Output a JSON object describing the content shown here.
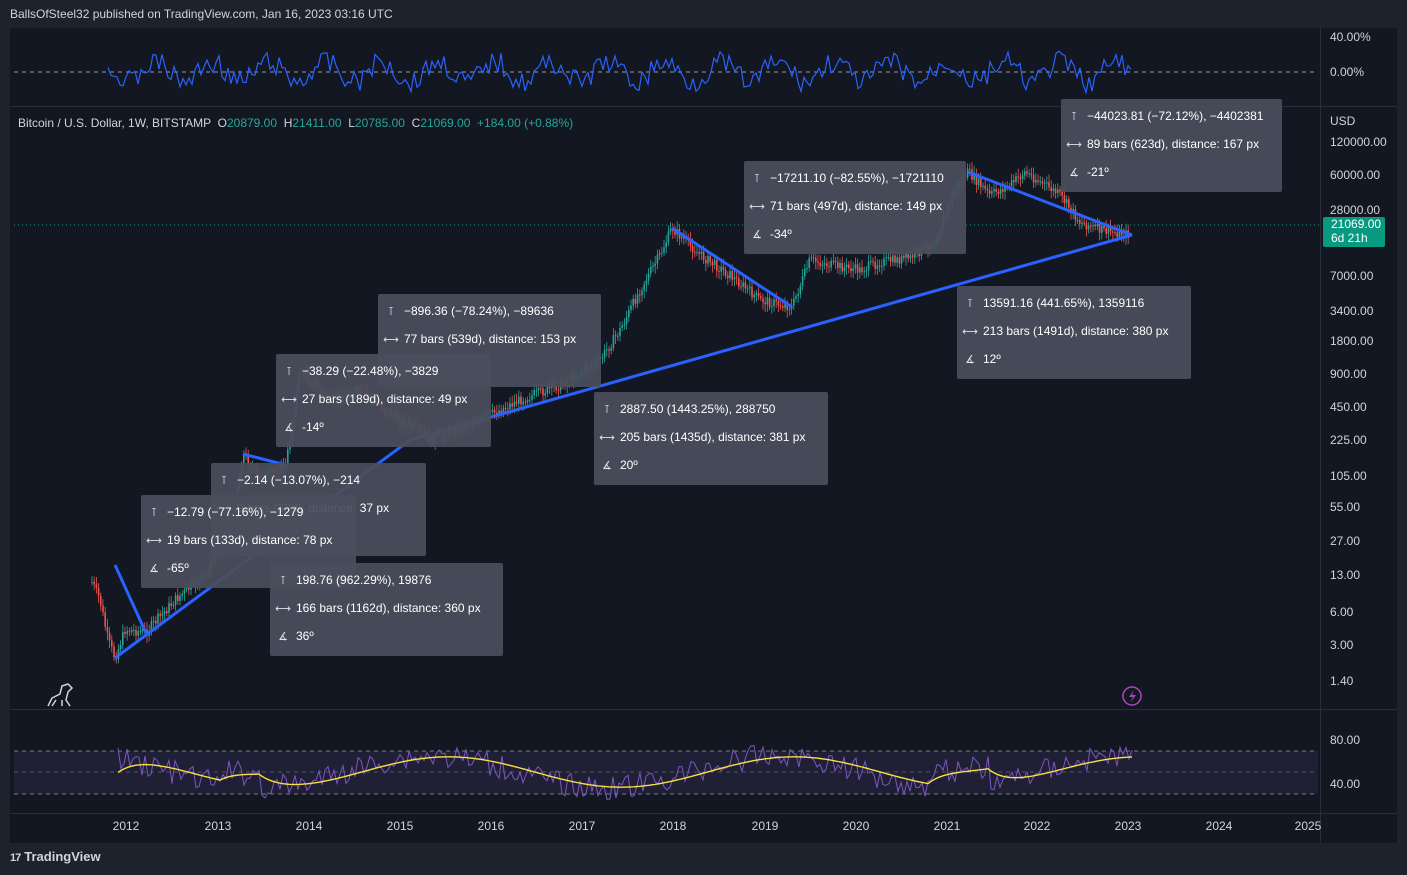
{
  "header": {
    "publish_text": "BallsOfSteel32 published on TradingView.com, Jan 16, 2023 03:16 UTC"
  },
  "legend": {
    "symbol": "Bitcoin / U.S. Dollar, 1W, BITSTAMP",
    "o_label": "O",
    "o_value": "20879.00",
    "h_label": "H",
    "h_value": "21411.00",
    "l_label": "L",
    "l_value": "20785.00",
    "c_label": "C",
    "c_value": "21069.00",
    "change": "+184.00 (+0.88%)"
  },
  "top_pane": {
    "ticks": [
      "40.00%",
      "0.00%"
    ]
  },
  "price_axis": {
    "currency": "USD",
    "ticks": [
      "120000.00",
      "60000.00",
      "28000.00",
      "7000.00",
      "3400.00",
      "1800.00",
      "900.00",
      "450.00",
      "225.00",
      "105.00",
      "55.00",
      "27.00",
      "13.00",
      "6.00",
      "3.00",
      "1.40"
    ]
  },
  "price_tag": {
    "price": "21069.00",
    "countdown": "6d 21h"
  },
  "rsi_pane": {
    "ticks": [
      "80.00",
      "40.00"
    ]
  },
  "time_axis": {
    "ticks": [
      "2012",
      "2013",
      "2014",
      "2015",
      "2016",
      "2017",
      "2018",
      "2019",
      "2020",
      "2021",
      "2022",
      "2023",
      "2024",
      "2025"
    ]
  },
  "measure_boxes": [
    {
      "price": "−12.79 (−77.16%), −1279",
      "bars": "19 bars (133d), distance: 78 px",
      "angle": "-65º"
    },
    {
      "price": "−2.14 (−13.07%), −214",
      "bars": "9 bars (63d), distance: 37 px",
      "angle": ""
    },
    {
      "price": "198.76 (962.29%), 19876",
      "bars": "166 bars (1162d), distance: 360 px",
      "angle": "36º"
    },
    {
      "price": "−38.29 (−22.48%), −3829",
      "bars": "27 bars (189d), distance: 49 px",
      "angle": "-14º"
    },
    {
      "price": "−896.36 (−78.24%), −89636",
      "bars": "77 bars (539d), distance: 153 px",
      "angle": ""
    },
    {
      "price": "2887.50 (1443.25%), 288750",
      "bars": "205 bars (1435d), distance: 381 px",
      "angle": "20º"
    },
    {
      "price": "−17211.10 (−82.55%), −1721110",
      "bars": "71 bars (497d), distance: 149 px",
      "angle": "-34º"
    },
    {
      "price": "−44023.81 (−72.12%), −4402381",
      "bars": "89 bars (623d), distance: 167 px",
      "angle": "-21º"
    },
    {
      "price": "13591.16 (441.65%), 1359116",
      "bars": "213 bars (1491d), distance: 380 px",
      "angle": "12º"
    }
  ],
  "footer": {
    "brand": "TradingView"
  },
  "colors": {
    "up": "#26a69a",
    "down": "#ef5350",
    "trendline": "#2962ff",
    "rsi": "#7e57c2",
    "rsi_ma": "#f7e144",
    "osc": "#2962ff"
  },
  "icons": [
    "measure-price-icon",
    "measure-bars-icon",
    "measure-angle-icon",
    "dino-icon",
    "lightning-icon",
    "tradingview-logo-icon"
  ]
}
